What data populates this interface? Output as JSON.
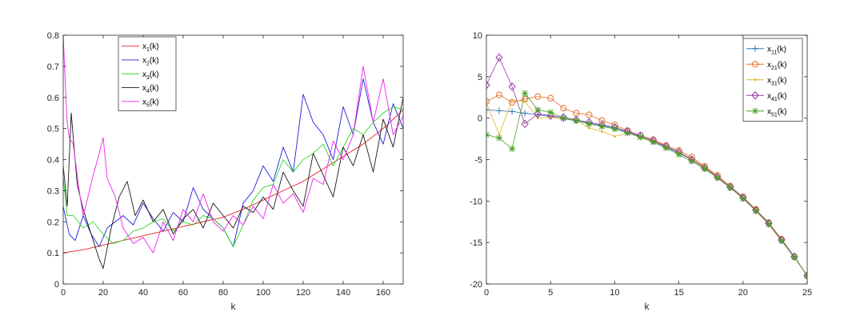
{
  "chart_data": [
    {
      "type": "line",
      "xlabel": "k",
      "ylabel": "",
      "xlim": [
        0,
        170
      ],
      "ylim": [
        0,
        0.8
      ],
      "xticks": [
        0,
        20,
        40,
        60,
        80,
        100,
        120,
        140,
        160
      ],
      "yticks": [
        0,
        0.1,
        0.2,
        0.3,
        0.4,
        0.5,
        0.6,
        0.7,
        0.8
      ],
      "grid": false,
      "legend_position": "top",
      "series": [
        {
          "name": "x",
          "sub": "1",
          "suffix": "(k)",
          "color": "#e8202a",
          "x": [
            0,
            10,
            20,
            30,
            40,
            50,
            60,
            70,
            80,
            90,
            100,
            110,
            120,
            130,
            140,
            150,
            160,
            170
          ],
          "y": [
            0.1,
            0.11,
            0.125,
            0.14,
            0.155,
            0.17,
            0.185,
            0.2,
            0.215,
            0.24,
            0.27,
            0.3,
            0.33,
            0.37,
            0.41,
            0.45,
            0.5,
            0.56
          ]
        },
        {
          "name": "x",
          "sub": "2",
          "suffix": "(k)",
          "color": "#1f1fd6",
          "x": [
            0,
            3,
            6,
            10,
            14,
            18,
            22,
            26,
            30,
            35,
            40,
            45,
            50,
            55,
            60,
            65,
            70,
            75,
            80,
            85,
            90,
            95,
            100,
            105,
            110,
            115,
            120,
            125,
            130,
            135,
            140,
            145,
            150,
            155,
            160,
            165,
            170
          ],
          "y": [
            0.25,
            0.16,
            0.14,
            0.22,
            0.16,
            0.12,
            0.18,
            0.2,
            0.22,
            0.19,
            0.26,
            0.21,
            0.17,
            0.23,
            0.2,
            0.31,
            0.24,
            0.21,
            0.18,
            0.12,
            0.26,
            0.3,
            0.38,
            0.33,
            0.44,
            0.36,
            0.61,
            0.52,
            0.48,
            0.4,
            0.57,
            0.48,
            0.66,
            0.52,
            0.45,
            0.58,
            0.5
          ]
        },
        {
          "name": "x",
          "sub": "3",
          "suffix": "(k)",
          "color": "#2ad62a",
          "x": [
            0,
            2,
            5,
            10,
            15,
            20,
            25,
            30,
            35,
            40,
            45,
            50,
            55,
            60,
            65,
            70,
            75,
            80,
            85,
            90,
            95,
            100,
            105,
            110,
            115,
            120,
            125,
            130,
            135,
            140,
            145,
            150,
            155,
            160,
            165,
            170
          ],
          "y": [
            0.34,
            0.22,
            0.22,
            0.18,
            0.2,
            0.16,
            0.13,
            0.14,
            0.17,
            0.18,
            0.2,
            0.21,
            0.17,
            0.2,
            0.19,
            0.22,
            0.21,
            0.18,
            0.12,
            0.19,
            0.27,
            0.31,
            0.32,
            0.4,
            0.36,
            0.4,
            0.42,
            0.45,
            0.38,
            0.44,
            0.5,
            0.48,
            0.52,
            0.55,
            0.57,
            0.56
          ]
        },
        {
          "name": "x",
          "sub": "4",
          "suffix": "(k)",
          "color": "#1a1a1a",
          "x": [
            0,
            2,
            4,
            7,
            10,
            14,
            18,
            20,
            24,
            28,
            32,
            36,
            40,
            45,
            50,
            55,
            60,
            65,
            70,
            75,
            80,
            85,
            90,
            95,
            100,
            105,
            110,
            115,
            120,
            125,
            130,
            135,
            140,
            145,
            150,
            155,
            160,
            165,
            170
          ],
          "y": [
            0.38,
            0.25,
            0.55,
            0.32,
            0.24,
            0.16,
            0.08,
            0.05,
            0.18,
            0.28,
            0.33,
            0.22,
            0.27,
            0.2,
            0.24,
            0.16,
            0.21,
            0.24,
            0.18,
            0.26,
            0.22,
            0.18,
            0.25,
            0.23,
            0.28,
            0.24,
            0.36,
            0.3,
            0.25,
            0.42,
            0.35,
            0.28,
            0.44,
            0.38,
            0.48,
            0.36,
            0.53,
            0.44,
            0.6
          ]
        },
        {
          "name": "x",
          "sub": "5",
          "suffix": "(k)",
          "color": "#ee22ee",
          "x": [
            0,
            1,
            2,
            3,
            5,
            8,
            10,
            12,
            15,
            18,
            20,
            22,
            26,
            30,
            35,
            40,
            45,
            50,
            55,
            60,
            65,
            70,
            75,
            80,
            85,
            90,
            95,
            100,
            105,
            110,
            115,
            120,
            125,
            130,
            135,
            140,
            145,
            150,
            155,
            160,
            165,
            170
          ],
          "y": [
            0.8,
            0.65,
            0.52,
            0.47,
            0.45,
            0.3,
            0.22,
            0.27,
            0.35,
            0.42,
            0.47,
            0.34,
            0.28,
            0.18,
            0.13,
            0.15,
            0.1,
            0.2,
            0.14,
            0.24,
            0.2,
            0.29,
            0.2,
            0.17,
            0.22,
            0.19,
            0.25,
            0.21,
            0.32,
            0.26,
            0.29,
            0.23,
            0.34,
            0.32,
            0.46,
            0.4,
            0.48,
            0.7,
            0.52,
            0.66,
            0.48,
            0.54
          ]
        }
      ]
    },
    {
      "type": "line",
      "xlabel": "k",
      "ylabel": "",
      "xlim": [
        0,
        25
      ],
      "ylim": [
        -20,
        10
      ],
      "xticks": [
        0,
        5,
        10,
        15,
        20,
        25
      ],
      "yticks": [
        -20,
        -15,
        -10,
        -5,
        0,
        5,
        10
      ],
      "grid": false,
      "legend_position": "top-right",
      "series": [
        {
          "name": "x",
          "sub": "11",
          "suffix": "(k)",
          "color": "#2a7ab8",
          "marker": "plus",
          "x": [
            0,
            1,
            2,
            3,
            4,
            5,
            6,
            7,
            8,
            9,
            10,
            11,
            12,
            13,
            14,
            15,
            16,
            17,
            18,
            19,
            20,
            21,
            22,
            23,
            24,
            25
          ],
          "y": [
            1.0,
            0.9,
            0.8,
            0.6,
            0.4,
            0.2,
            -0.1,
            -0.3,
            -0.6,
            -0.9,
            -1.2,
            -1.7,
            -2.2,
            -2.8,
            -3.5,
            -4.2,
            -5.0,
            -6.0,
            -7.1,
            -8.3,
            -9.6,
            -11.1,
            -12.7,
            -14.7,
            -16.7,
            -19.0
          ]
        },
        {
          "name": "x",
          "sub": "21",
          "suffix": "(k)",
          "color": "#e0732a",
          "marker": "circle",
          "x": [
            0,
            1,
            2,
            3,
            4,
            5,
            6,
            7,
            8,
            9,
            10,
            11,
            12,
            13,
            14,
            15,
            16,
            17,
            18,
            19,
            20,
            21,
            22,
            23,
            24,
            25
          ],
          "y": [
            2.0,
            2.8,
            1.9,
            2.3,
            2.6,
            2.4,
            1.2,
            0.6,
            0.4,
            -0.3,
            -0.8,
            -1.5,
            -2.1,
            -2.6,
            -3.3,
            -3.9,
            -4.7,
            -5.8,
            -6.9,
            -8.2,
            -9.5,
            -11.0,
            -12.6,
            -14.6,
            -16.7,
            -19.0
          ]
        },
        {
          "name": "x",
          "sub": "31",
          "suffix": "(k)",
          "color": "#e0b020",
          "marker": "dot",
          "x": [
            0,
            1,
            2,
            3,
            4,
            5,
            6,
            7,
            8,
            9,
            10,
            11,
            12,
            13,
            14,
            15,
            16,
            17,
            18,
            19,
            20,
            21,
            22,
            23,
            24,
            25
          ],
          "y": [
            1.8,
            -2.0,
            2.2,
            2.0,
            0.0,
            0.1,
            -0.1,
            -0.2,
            -1.2,
            -1.6,
            -2.2,
            -1.8,
            -2.3,
            -2.8,
            -3.4,
            -4.1,
            -4.9,
            -5.9,
            -7.0,
            -8.2,
            -9.6,
            -11.0,
            -12.7,
            -14.7,
            -16.7,
            -19.0
          ]
        },
        {
          "name": "x",
          "sub": "41",
          "suffix": "(k)",
          "color": "#9a3aa8",
          "marker": "diamond",
          "x": [
            0,
            1,
            2,
            3,
            4,
            5,
            6,
            7,
            8,
            9,
            10,
            11,
            12,
            13,
            14,
            15,
            16,
            17,
            18,
            19,
            20,
            21,
            22,
            23,
            24,
            25
          ],
          "y": [
            4.0,
            7.3,
            3.8,
            -0.7,
            0.5,
            0.3,
            0.1,
            -0.2,
            -0.5,
            -0.8,
            -1.1,
            -1.6,
            -2.1,
            -2.7,
            -3.4,
            -4.1,
            -5.0,
            -6.0,
            -7.1,
            -8.3,
            -9.6,
            -11.1,
            -12.7,
            -14.7,
            -16.7,
            -19.0
          ]
        },
        {
          "name": "x",
          "sub": "51",
          "suffix": "(k)",
          "color": "#4aa02a",
          "marker": "star",
          "x": [
            0,
            1,
            2,
            3,
            4,
            5,
            6,
            7,
            8,
            9,
            10,
            11,
            12,
            13,
            14,
            15,
            16,
            17,
            18,
            19,
            20,
            21,
            22,
            23,
            24,
            25
          ],
          "y": [
            -2.0,
            -2.4,
            -3.7,
            3.0,
            1.0,
            0.7,
            0.0,
            -0.3,
            -0.7,
            -1.0,
            -1.3,
            -1.8,
            -2.3,
            -2.9,
            -3.6,
            -4.4,
            -5.2,
            -6.1,
            -7.2,
            -8.4,
            -9.7,
            -11.2,
            -12.8,
            -14.8,
            -16.8,
            -19.0
          ]
        }
      ]
    }
  ]
}
